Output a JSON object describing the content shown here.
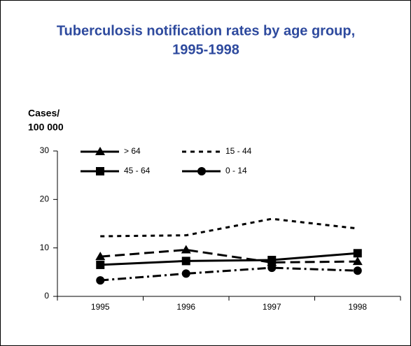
{
  "chart_data": {
    "type": "line",
    "title": [
      "Tuberculosis notification rates by age group,",
      "1995-1998"
    ],
    "ylabel": [
      "Cases/",
      "100 000"
    ],
    "categories": [
      "1995",
      "1996",
      "1997",
      "1998"
    ],
    "series": [
      {
        "name": "> 64",
        "color": "#000000",
        "marker": "triangle",
        "dash": "long",
        "values": [
          8.2,
          9.6,
          7.0,
          7.2
        ]
      },
      {
        "name": "15 - 44",
        "color": "#000000",
        "marker": "none",
        "dash": "short",
        "values": [
          12.4,
          12.6,
          16.0,
          14.0
        ]
      },
      {
        "name": "45 - 64",
        "color": "#000000",
        "marker": "square",
        "dash": "solid",
        "values": [
          6.5,
          7.3,
          7.5,
          8.9
        ]
      },
      {
        "name": "0 - 14",
        "color": "#000000",
        "marker": "circle",
        "dash": "dashdot",
        "values": [
          3.3,
          4.7,
          5.9,
          5.3
        ]
      }
    ],
    "ylim": [
      0,
      30
    ],
    "yticks": [
      0,
      10,
      20,
      30
    ],
    "grid": false
  }
}
